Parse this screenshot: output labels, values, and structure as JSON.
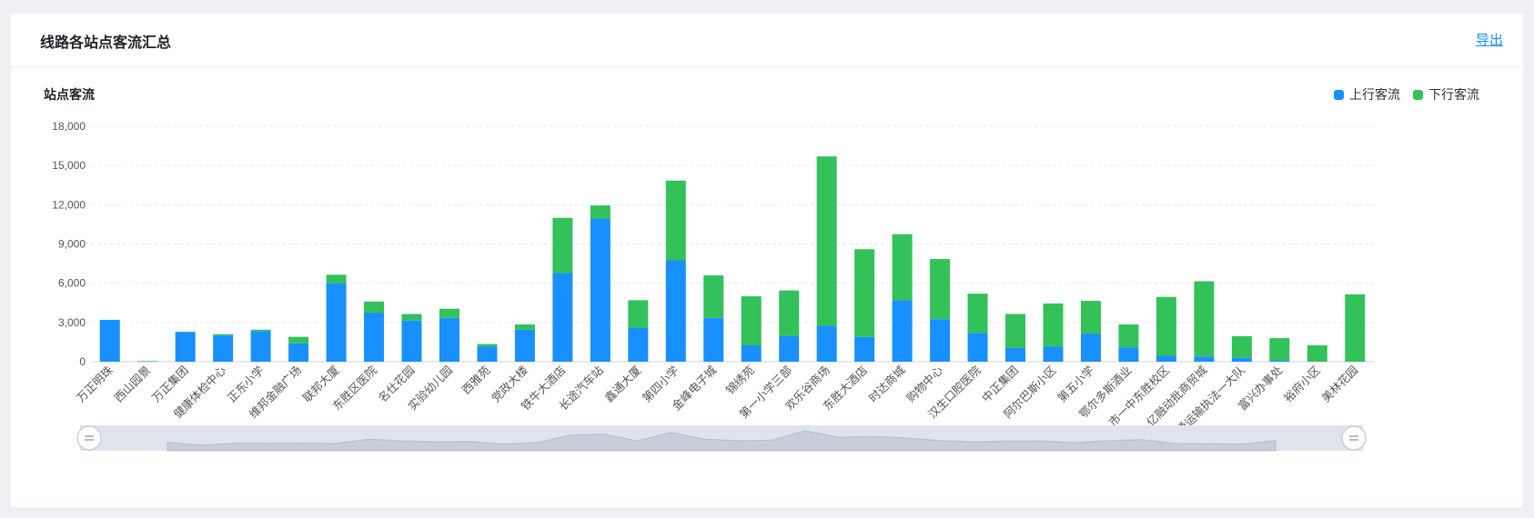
{
  "header": {
    "title": "线路各站点客流汇总",
    "export_label": "导出"
  },
  "colors": {
    "up": "#1890ff",
    "down": "#33c15a",
    "grid": "#e6e8ec",
    "axis_text": "#555555",
    "zoom_track": "#dfe4ec"
  },
  "chart_data": {
    "type": "bar",
    "stacked": true,
    "title": "站点客流",
    "xlabel": "",
    "ylabel": "",
    "ylim": [
      0,
      18000
    ],
    "yticks": [
      "0",
      "3,000",
      "6,000",
      "9,000",
      "12,000",
      "15,000",
      "18,000"
    ],
    "ytick_values": [
      0,
      3000,
      6000,
      9000,
      12000,
      15000,
      18000
    ],
    "grid": true,
    "legend_position": "top-right",
    "x_label_rotation": -45,
    "categories": [
      "万正明珠",
      "西山园景",
      "万正集团",
      "健康体检中心",
      "正东小学",
      "维邦金融广场",
      "联邦大厦",
      "东胜区医院",
      "名仕花园",
      "实验幼儿园",
      "西雅苑",
      "党政大楼",
      "铁牛大酒店",
      "长途汽车站",
      "鑫通大厦",
      "第四小学",
      "金峰电子城",
      "锦绣苑",
      "第一小学三部",
      "欢乐谷商场",
      "东胜大酒店",
      "时达商城",
      "购物中心",
      "汉生口腔医院",
      "中正集团",
      "阿尔巴斯小区",
      "第五小学",
      "鄂尔多斯酒业",
      "市一中东胜校区",
      "亿融动批商贸城",
      "交通运输执法一大队",
      "富兴办事处",
      "裕府小区",
      "美林花园"
    ],
    "series": [
      {
        "name": "上行客流",
        "values": [
          3200,
          0,
          2250,
          2000,
          2350,
          1400,
          6000,
          3750,
          3150,
          3350,
          1150,
          2450,
          6800,
          10950,
          2600,
          7750,
          3350,
          1250,
          1950,
          2750,
          1900,
          4700,
          3250,
          2200,
          1050,
          1150,
          2150,
          1100,
          450,
          400,
          300,
          100,
          0,
          0
        ]
      },
      {
        "name": "下行客流",
        "values": [
          0,
          50,
          50,
          100,
          100,
          500,
          650,
          850,
          500,
          700,
          200,
          400,
          4200,
          1000,
          2100,
          6100,
          3250,
          3750,
          3500,
          12950,
          6700,
          5050,
          4600,
          3000,
          2600,
          3300,
          2500,
          1750,
          4500,
          5750,
          1650,
          1700,
          1250,
          5150
        ]
      }
    ]
  },
  "zoom": {
    "start_percent": 0,
    "end_percent": 100
  }
}
